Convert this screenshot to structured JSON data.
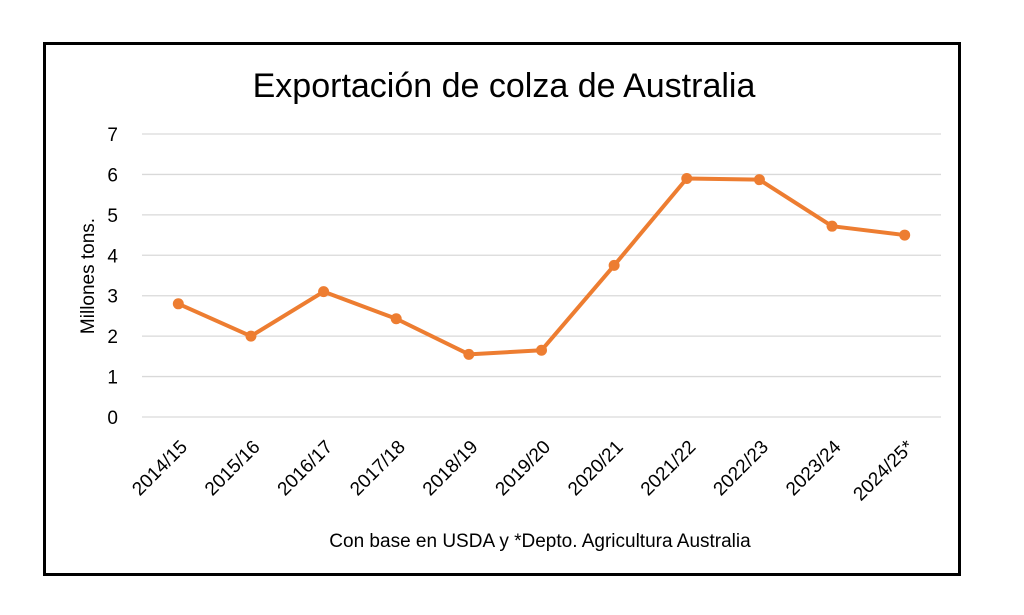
{
  "chart_data": {
    "type": "line",
    "title": "Exportación de colza de Australia",
    "ylabel": "Millones tons.",
    "xlabel": "Con base en USDA y *Depto. Agricultura Australia",
    "categories": [
      "2014/15",
      "2015/16",
      "2016/17",
      "2017/18",
      "2018/19",
      "2019/20",
      "2020/21",
      "2021/22",
      "2022/23",
      "2023/24",
      "2024/25*"
    ],
    "series": [
      {
        "values": [
          2.8,
          2.0,
          3.1,
          2.43,
          1.55,
          1.65,
          3.75,
          5.9,
          5.87,
          4.72,
          4.5
        ]
      }
    ],
    "ylim": [
      0,
      7
    ],
    "yticks": [
      0,
      1,
      2,
      3,
      4,
      5,
      6,
      7
    ],
    "grid": true,
    "legend": "none",
    "line_color": "#ED7D31",
    "grid_color": "#D9D9D9"
  }
}
